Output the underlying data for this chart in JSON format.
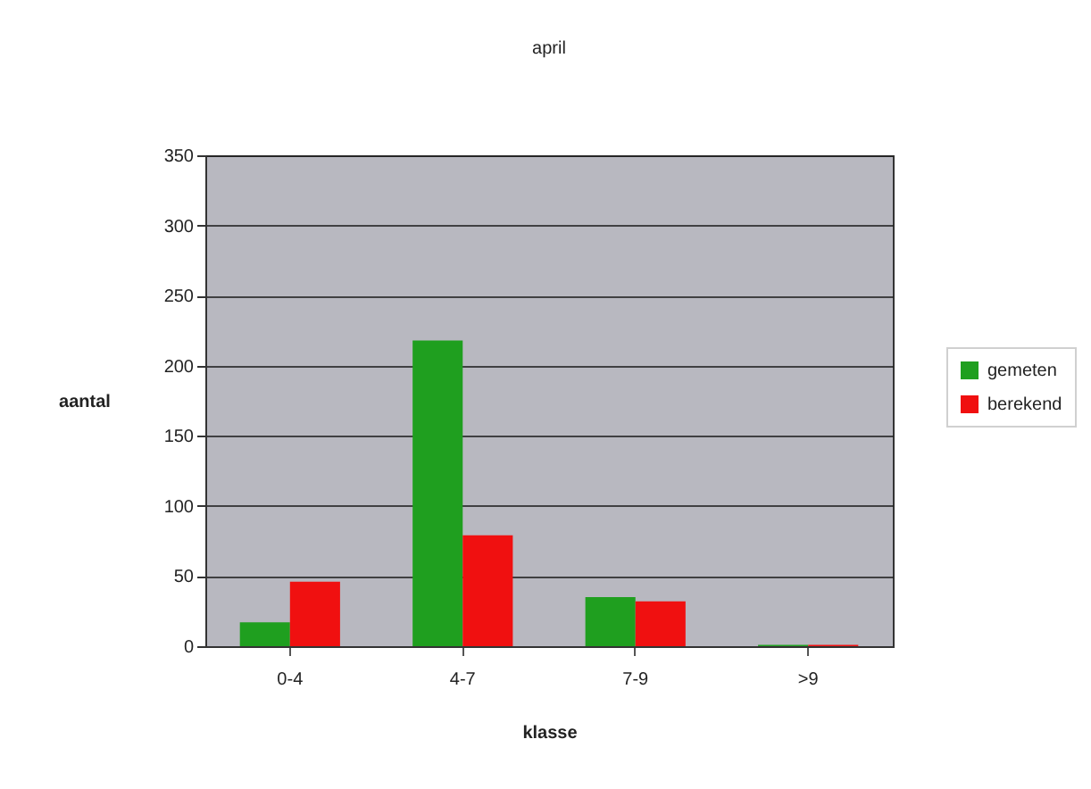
{
  "chart_data": {
    "type": "bar",
    "title": "april",
    "xlabel": "klasse",
    "ylabel": "aantal",
    "categories": [
      "0-4",
      "4-7",
      "7-9",
      ">9"
    ],
    "series": [
      {
        "name": "gemeten",
        "color": "#1f9f1f",
        "values": [
          17,
          218,
          35,
          1
        ]
      },
      {
        "name": "berekend",
        "color": "#f01010",
        "values": [
          46,
          79,
          32,
          1
        ]
      }
    ],
    "ylim": [
      0,
      350
    ],
    "yticks": [
      0,
      50,
      100,
      150,
      200,
      250,
      300,
      350
    ],
    "grid": "y",
    "legend": "right"
  }
}
